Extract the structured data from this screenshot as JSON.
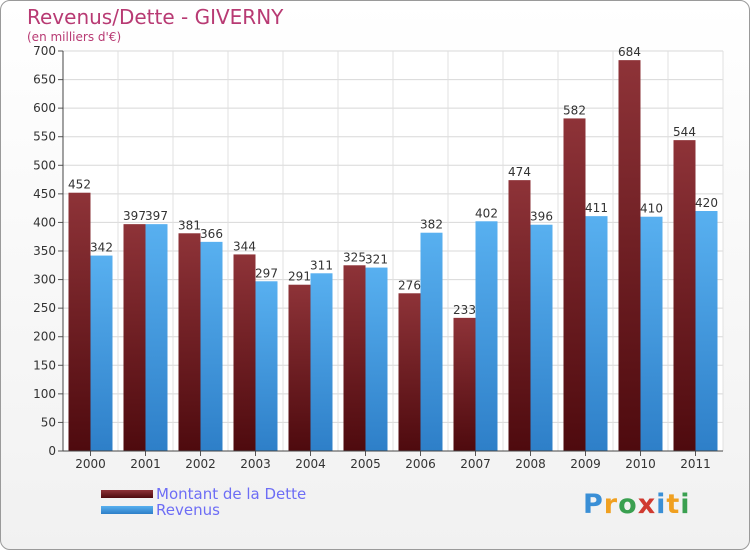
{
  "header": {
    "title": "Revenus/Dette - GIVERNY",
    "subtitle": "(en milliers d'€)"
  },
  "chart_data": {
    "type": "bar",
    "categories": [
      "2000",
      "2001",
      "2002",
      "2003",
      "2004",
      "2005",
      "2006",
      "2007",
      "2008",
      "2009",
      "2010",
      "2011"
    ],
    "series": [
      {
        "name": "Montant de la Dette",
        "values": [
          452,
          397,
          381,
          344,
          291,
          325,
          276,
          233,
          474,
          582,
          684,
          544
        ],
        "color": "#7a2a30"
      },
      {
        "name": "Revenus",
        "values": [
          342,
          397,
          366,
          297,
          311,
          321,
          382,
          402,
          396,
          411,
          410,
          420
        ],
        "color": "#4aa3e8"
      }
    ],
    "title": "Revenus/Dette - GIVERNY",
    "ylabel": "(en milliers d'€)",
    "ylim": [
      0,
      700
    ],
    "yticks": [
      0,
      50,
      100,
      150,
      200,
      250,
      300,
      350,
      400,
      450,
      500,
      550,
      600,
      650,
      700
    ],
    "grid": true,
    "legend": "bottom-left"
  },
  "legend": {
    "items": [
      {
        "label": "Montant de la Dette",
        "color": "#5a0f14"
      },
      {
        "label": "Revenus",
        "color": "#3d9be6"
      }
    ]
  },
  "logo": {
    "text": "Proxiti",
    "letters": [
      "P",
      "r",
      "o",
      "x",
      "i",
      "t",
      "i"
    ],
    "colors": [
      "#3a8fd6",
      "#f0a020",
      "#3aa050",
      "#d03a30",
      "#3a8fd6",
      "#f0a020",
      "#3aa050"
    ]
  }
}
